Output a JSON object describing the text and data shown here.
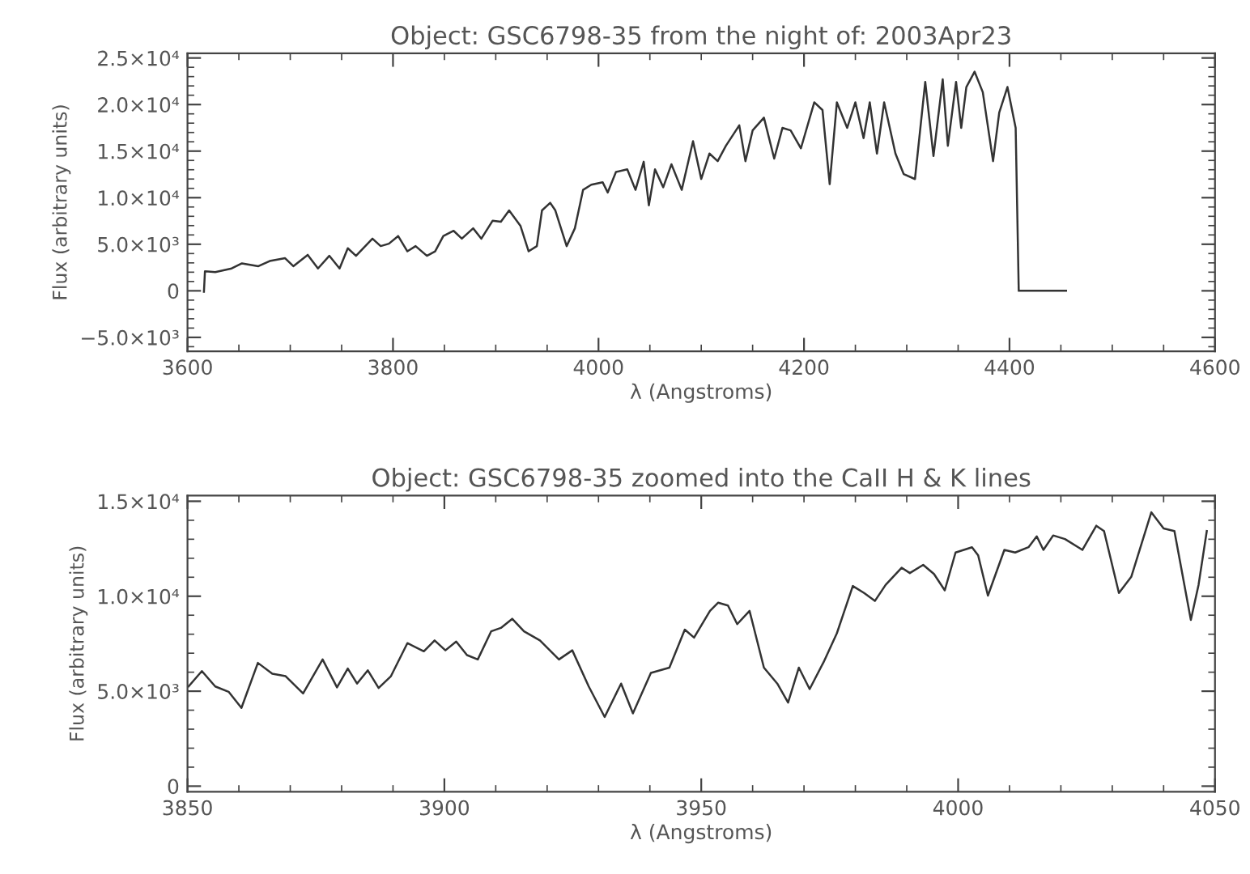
{
  "chart_data": [
    {
      "type": "line",
      "title": "Object: GSC6798-35 from the night of: 2003Apr23",
      "xlabel": "λ (Angstroms)",
      "ylabel": "Flux (arbitrary units)",
      "color": "#333333",
      "grid": false,
      "legend": false,
      "marker": "none",
      "line_style": "solid",
      "x": [
        3616,
        3617,
        3627,
        3643,
        3653,
        3669,
        3680,
        3695,
        3703,
        3717,
        3727,
        3738,
        3748,
        3756,
        3764,
        3780,
        3788,
        3796,
        3805,
        3814,
        3822,
        3833,
        3841,
        3849,
        3859,
        3867,
        3878,
        3886,
        3897,
        3905,
        3913,
        3924,
        3932,
        3940,
        3945,
        3953,
        3958,
        3969,
        3977,
        3985,
        3993,
        4004,
        4009,
        4017,
        4028,
        4036,
        4044,
        4049,
        4055,
        4063,
        4071,
        4081,
        4092,
        4100,
        4108,
        4116,
        4124,
        4137,
        4143,
        4150,
        4161,
        4171,
        4179,
        4187,
        4197,
        4210,
        4218,
        4225,
        4232,
        4242,
        4250,
        4258,
        4264,
        4271,
        4278,
        4289,
        4297,
        4308,
        4318,
        4326,
        4335,
        4340,
        4348,
        4353,
        4358,
        4366,
        4374,
        4384,
        4390,
        4398,
        4406,
        4409,
        4455
      ],
      "values": [
        -100,
        2090,
        2000,
        2400,
        2950,
        2640,
        3200,
        3500,
        2640,
        3860,
        2400,
        3760,
        2400,
        4570,
        3760,
        5600,
        4800,
        5060,
        5880,
        4240,
        4800,
        3760,
        4240,
        5880,
        6440,
        5600,
        6710,
        5600,
        7530,
        7420,
        8630,
        6990,
        4240,
        4800,
        8630,
        9450,
        8630,
        4800,
        6710,
        10840,
        11390,
        11660,
        10560,
        12760,
        13040,
        10840,
        13860,
        9180,
        13040,
        11120,
        13590,
        10840,
        16060,
        12010,
        14740,
        13920,
        15570,
        17770,
        13920,
        17220,
        18590,
        14190,
        17490,
        17220,
        15300,
        20240,
        19410,
        11450,
        20240,
        17490,
        20240,
        16400,
        20240,
        14740,
        20240,
        14740,
        12540,
        12000,
        22430,
        14470,
        22700,
        15570,
        22430,
        17490,
        21880,
        23530,
        21330,
        13920,
        19140,
        21880,
        17490,
        0,
        0
      ],
      "xlim": [
        3600,
        4600
      ],
      "xticks": [
        3600,
        3800,
        4000,
        4200,
        4400,
        4600
      ],
      "ylim": [
        -6500,
        25500
      ],
      "yticks": [
        {
          "value": -5000,
          "label": "−5.0×10³"
        },
        0,
        {
          "value": 5000,
          "label": "5.0×10³"
        },
        {
          "value": 10000,
          "label": "1.0×10⁴"
        },
        {
          "value": 15000,
          "label": "1.5×10⁴"
        },
        {
          "value": 20000,
          "label": "2.0×10⁴"
        },
        {
          "value": 25000,
          "label": "2.5×10⁴"
        }
      ]
    },
    {
      "type": "line",
      "title": "Object: GSC6798-35 zoomed into the CaII H & K lines",
      "xlabel": "λ (Angstroms)",
      "ylabel": "Flux (arbitrary units)",
      "color": "#333333",
      "grid": false,
      "legend": false,
      "marker": "none",
      "line_style": "solid",
      "x": [
        3850.2,
        3852.8,
        3855.4,
        3858,
        3860.5,
        3863.7,
        3866.5,
        3869.1,
        3872.5,
        3876.3,
        3879.1,
        3881.2,
        3883,
        3885.1,
        3887.2,
        3889.6,
        3892.8,
        3896,
        3898.1,
        3900.2,
        3902.3,
        3904.4,
        3906.5,
        3909.1,
        3911,
        3913.2,
        3915.5,
        3918.6,
        3922.3,
        3924.9,
        3928.1,
        3931.2,
        3934.4,
        3936.7,
        3940.2,
        3943.8,
        3946.8,
        3948.6,
        3951.7,
        3953.3,
        3955.2,
        3957,
        3959.4,
        3962.2,
        3964.8,
        3966.9,
        3969,
        3971.1,
        3973.8,
        3976.4,
        3979.5,
        3981.7,
        3983.8,
        3985.9,
        3989,
        3990.6,
        3993.2,
        3995.3,
        3997.4,
        3999.5,
        4002.7,
        4003.9,
        4005.8,
        4009,
        4011.1,
        4013.7,
        4015.3,
        4016.6,
        4018.5,
        4020.8,
        4024.2,
        4026.9,
        4028.4,
        4031.3,
        4033.7,
        4037.6,
        4040,
        4042.1,
        4045.3,
        4046.8,
        4048.4
      ],
      "values": [
        5250,
        6060,
        5250,
        4970,
        4120,
        6490,
        5920,
        5790,
        4880,
        6670,
        5200,
        6190,
        5400,
        6100,
        5170,
        5790,
        7530,
        7100,
        7670,
        7150,
        7610,
        6900,
        6670,
        8150,
        8330,
        8810,
        8150,
        7670,
        6670,
        7150,
        5250,
        3640,
        5400,
        3830,
        5960,
        6240,
        8240,
        7820,
        9230,
        9660,
        9510,
        8530,
        9230,
        6240,
        5400,
        4400,
        6240,
        5110,
        6520,
        8050,
        10540,
        10170,
        9750,
        10600,
        11500,
        11220,
        11650,
        11170,
        10310,
        12300,
        12580,
        12150,
        10030,
        12440,
        12300,
        12580,
        13150,
        12440,
        13200,
        13010,
        12440,
        13710,
        13430,
        10170,
        11020,
        14420,
        13570,
        13430,
        8750,
        10600,
        13430
      ],
      "xlim": [
        3850,
        4050
      ],
      "xticks": [
        3850,
        3900,
        3950,
        4000,
        4050
      ],
      "ylim": [
        -300,
        15300
      ],
      "yticks": [
        0,
        {
          "value": 5000,
          "label": "5.0×10³"
        },
        {
          "value": 10000,
          "label": "1.0×10⁴"
        },
        {
          "value": 15000,
          "label": "1.5×10⁴"
        }
      ]
    }
  ]
}
